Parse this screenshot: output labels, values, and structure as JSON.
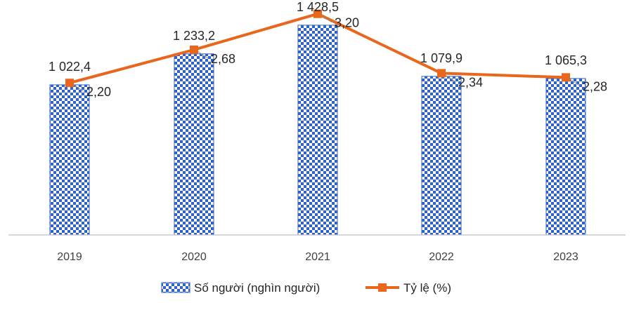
{
  "chart_data": {
    "type": "bar",
    "categories": [
      "2019",
      "2020",
      "2021",
      "2022",
      "2023"
    ],
    "series": [
      {
        "name": "Số người (nghìn người)",
        "type": "bar",
        "axis": "left",
        "values": [
          1022.4,
          1233.2,
          1428.5,
          1079.9,
          1065.3
        ],
        "labels": [
          "1 022,4",
          "1 233,2",
          "1 428,5",
          "1 079,9",
          "1 065,3"
        ],
        "color": "#2f62c9"
      },
      {
        "name": "Tỷ lệ (%)",
        "type": "line",
        "axis": "right",
        "values": [
          2.2,
          2.68,
          3.2,
          2.34,
          2.28
        ],
        "labels": [
          "2,20",
          "2,68",
          "3,20",
          "2,34",
          "2,28"
        ],
        "color": "#e8671c"
      }
    ],
    "ylim_left": [
      0,
      1600
    ],
    "ylim_right": [
      0,
      3.4
    ],
    "legend_position": "bottom",
    "grid": false
  }
}
